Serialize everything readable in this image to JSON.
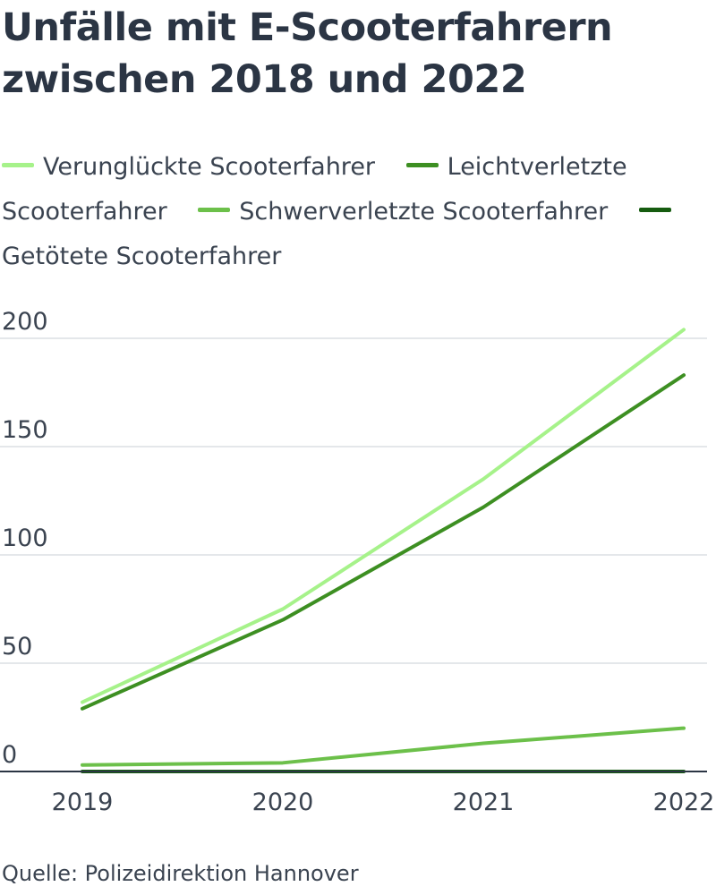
{
  "title": "Unfälle mit E-Scooterfahrern zwischen 2018 und 2022",
  "source": "Quelle: Polizeidirektion Hannover",
  "chart_data": {
    "type": "line",
    "title": "Unfälle mit E-Scooterfahrern zwischen 2018 und 2022",
    "xlabel": "",
    "ylabel": "",
    "x": [
      "2019",
      "2020",
      "2021",
      "2022"
    ],
    "ylim": [
      0,
      200
    ],
    "yticks": [
      0,
      50,
      100,
      150,
      200
    ],
    "grid": true,
    "legend_position": "top",
    "series": [
      {
        "name": "Verunglückte Scooterfahrer",
        "color": "#a6f28a",
        "values": [
          32,
          75,
          135,
          204
        ]
      },
      {
        "name": "Leichtverletzte Scooterfahrer",
        "color": "#3d8f22",
        "values": [
          29,
          70,
          122,
          183
        ]
      },
      {
        "name": "Schwerverletzte Scooterfahrer",
        "color": "#6cc04a",
        "values": [
          3,
          4,
          13,
          20
        ]
      },
      {
        "name": "Getötete Scooterfahrer",
        "color": "#165c10",
        "values": [
          0,
          0,
          0,
          0
        ]
      }
    ]
  }
}
